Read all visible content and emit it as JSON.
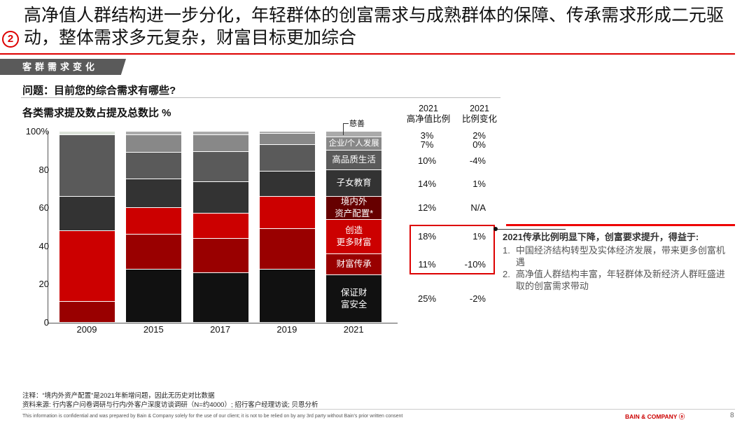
{
  "header": {
    "title": "高净值人群结构进一步分化，年轻群体的创富需求与成熟群体的保障、传承需求形成二元驱动，整体需求多元复杂，财富目标更加综合",
    "section_number": "2"
  },
  "banner": "客群需求变化",
  "question": "问题：目前您的综合需求有哪些?",
  "chart_data": {
    "type": "bar",
    "stacked": true,
    "title": "各类需求提及数占提及总数比 %",
    "xlabel": "",
    "ylabel": "",
    "ylim": [
      0,
      100
    ],
    "yticks": [
      "0",
      "20",
      "40",
      "60",
      "80",
      "100%"
    ],
    "categories": [
      "2009",
      "2015",
      "2017",
      "2019",
      "2021"
    ],
    "series": [
      {
        "name": "保证财富安全",
        "label": "保证财\n富安全",
        "color": "#111111",
        "values": [
          0,
          28,
          26,
          28,
          25
        ]
      },
      {
        "name": "财富传承",
        "label": "财富传承",
        "color": "#990000",
        "values": [
          11,
          18,
          18,
          21,
          11
        ]
      },
      {
        "name": "创造更多财富",
        "label": "创造\n更多财富",
        "color": "#cc0000",
        "values": [
          37,
          14,
          13,
          17,
          18
        ]
      },
      {
        "name": "境内外资产配置*",
        "label": "境内外\n资产配置*",
        "color": "#660000",
        "values": [
          0,
          0,
          0,
          0,
          12
        ]
      },
      {
        "name": "子女教育",
        "label": "子女教育",
        "color": "#333333",
        "values": [
          18,
          15,
          16.5,
          13,
          14
        ]
      },
      {
        "name": "高品质生活",
        "label": "高品质生活",
        "color": "#5a5a5a",
        "values": [
          32,
          14,
          16,
          14,
          10
        ]
      },
      {
        "name": "企业/个人发展",
        "label": "企业/个人发展",
        "color": "#888888",
        "values": [
          0,
          9,
          8.7,
          6,
          7
        ]
      },
      {
        "name": "慈善",
        "label": "慈善",
        "color": "#aaaaaa",
        "values": [
          2,
          2,
          1.8,
          1,
          3
        ]
      }
    ]
  },
  "table": {
    "col1_header": [
      "2021",
      "高净值比例"
    ],
    "col2_header": [
      "2021",
      "比例变化"
    ],
    "rows": [
      {
        "share": "3%",
        "change": "2%"
      },
      {
        "share": "7%",
        "change": "0%"
      },
      {
        "share": "10%",
        "change": "-4%"
      },
      {
        "share": "14%",
        "change": "1%"
      },
      {
        "share": "12%",
        "change": "N/A"
      },
      {
        "share": "18%",
        "change": "1%"
      },
      {
        "share": "11%",
        "change": "-10%"
      },
      {
        "share": "25%",
        "change": "-2%"
      }
    ]
  },
  "callout": {
    "heading": "2021传承比例明显下降，创富要求提升，得益于:",
    "items": [
      {
        "num": "1.",
        "text": "中国经济结构转型及实体经济发展，带来更多创富机遇"
      },
      {
        "num": "2.",
        "text": "高净值人群结构丰富，年轻群体及新经济人群旺盛进取的创富需求带动"
      }
    ]
  },
  "notes": {
    "note": "注释：“境内外资产配置”是2021年新增问题，因此无历史对比数据",
    "source": "资料来源: 行内客户问卷调研与行内/外客户深度访谈调研（N=约4000）; 招行客户经理访谈; 贝恩分析"
  },
  "footer": {
    "confidential": "This information is confidential and was prepared by Bain & Company solely for the use of our client; it is not to be relied on by any 3rd party without Bain's prior written consent",
    "logo": "BAIN & COMPANY",
    "page": "8"
  }
}
